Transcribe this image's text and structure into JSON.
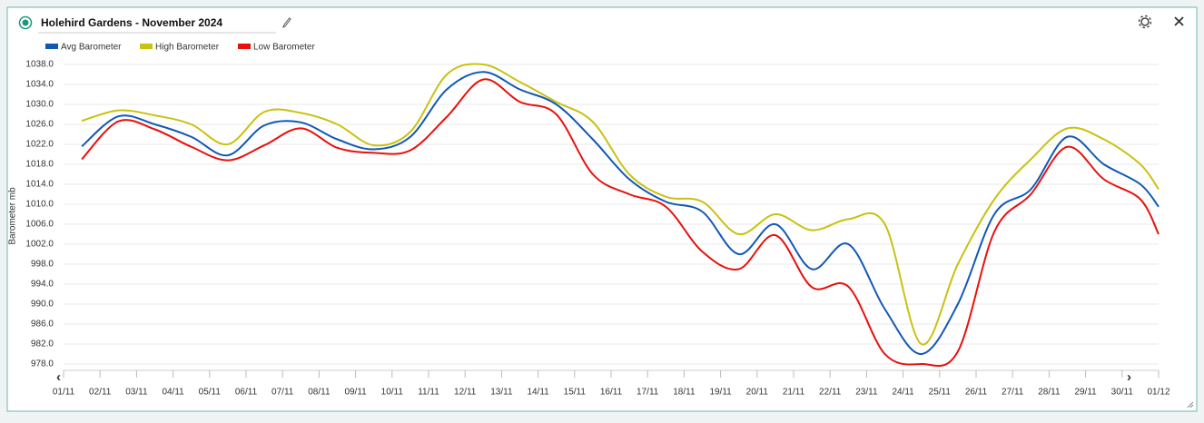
{
  "header": {
    "title": "Holehird Gardens - November 2024"
  },
  "chart_data": {
    "type": "line",
    "y_label": "Barometer mb",
    "x": [
      0.5,
      1.5,
      2.5,
      3.5,
      4.5,
      5.5,
      6.5,
      7.5,
      8.5,
      9.5,
      10.5,
      11.5,
      12.5,
      13.5,
      14.5,
      15.5,
      16.5,
      17.5,
      18.5,
      19.5,
      20.5,
      21.5,
      22.5,
      23.5,
      24.5,
      25.5,
      26.5,
      27.5,
      28.5,
      29.5,
      30
    ],
    "series": [
      {
        "name": "Avg Barometer",
        "color": "#1158b5",
        "values": [
          1021.6,
          1027.6,
          1026.0,
          1023.5,
          1019.8,
          1025.8,
          1026.4,
          1023.0,
          1021.0,
          1023.5,
          1033.0,
          1036.5,
          1033.0,
          1030.0,
          1023.0,
          1015.0,
          1010.5,
          1008.5,
          1000.0,
          1006.0,
          997.0,
          1002.0,
          989.0,
          980.0,
          990.0,
          1008.0,
          1013.0,
          1023.5,
          1018.0,
          1014.0,
          1009.5
        ]
      },
      {
        "name": "High Barometer",
        "color": "#c8c210",
        "values": [
          1026.7,
          1028.8,
          1027.8,
          1026.0,
          1022.0,
          1028.5,
          1028.3,
          1026.0,
          1021.8,
          1024.5,
          1036.0,
          1038.0,
          1034.5,
          1030.5,
          1026.5,
          1016.0,
          1011.5,
          1010.5,
          1004.0,
          1008.0,
          1004.8,
          1007.0,
          1006.0,
          982.0,
          998.0,
          1011.0,
          1019.0,
          1025.2,
          1023.0,
          1018.0,
          1013.0
        ]
      },
      {
        "name": "Low Barometer",
        "color": "#e8100c",
        "values": [
          1019.0,
          1026.6,
          1025.0,
          1021.5,
          1018.8,
          1021.8,
          1025.2,
          1021.3,
          1020.3,
          1020.8,
          1027.5,
          1035.0,
          1030.5,
          1028.0,
          1016.0,
          1012.0,
          1009.5,
          1000.5,
          997.0,
          1003.8,
          993.4,
          993.5,
          980.0,
          978.0,
          980.5,
          1004.5,
          1012.0,
          1021.5,
          1015.0,
          1011.0,
          1004.0
        ]
      }
    ],
    "xlim": [
      0,
      30
    ],
    "xticks": [
      {
        "value": 0,
        "label": "01/11"
      },
      {
        "value": 1,
        "label": "02/11"
      },
      {
        "value": 2,
        "label": "03/11"
      },
      {
        "value": 3,
        "label": "04/11"
      },
      {
        "value": 4,
        "label": "05/11"
      },
      {
        "value": 5,
        "label": "06/11"
      },
      {
        "value": 6,
        "label": "07/11"
      },
      {
        "value": 7,
        "label": "08/11"
      },
      {
        "value": 8,
        "label": "09/11"
      },
      {
        "value": 9,
        "label": "10/11"
      },
      {
        "value": 10,
        "label": "11/11"
      },
      {
        "value": 11,
        "label": "12/11"
      },
      {
        "value": 12,
        "label": "13/11"
      },
      {
        "value": 13,
        "label": "14/11"
      },
      {
        "value": 14,
        "label": "15/11"
      },
      {
        "value": 15,
        "label": "16/11"
      },
      {
        "value": 16,
        "label": "17/11"
      },
      {
        "value": 17,
        "label": "18/11"
      },
      {
        "value": 18,
        "label": "19/11"
      },
      {
        "value": 19,
        "label": "20/11"
      },
      {
        "value": 20,
        "label": "21/11"
      },
      {
        "value": 21,
        "label": "22/11"
      },
      {
        "value": 22,
        "label": "23/11"
      },
      {
        "value": 23,
        "label": "24/11"
      },
      {
        "value": 24,
        "label": "25/11"
      },
      {
        "value": 25,
        "label": "26/11"
      },
      {
        "value": 26,
        "label": "27/11"
      },
      {
        "value": 27,
        "label": "28/11"
      },
      {
        "value": 28,
        "label": "29/11"
      },
      {
        "value": 29,
        "label": "30/11"
      },
      {
        "value": 30,
        "label": "01/12"
      }
    ],
    "ylim": [
      976,
      1040
    ],
    "yticks": [
      {
        "value": 978,
        "label": "978.0"
      },
      {
        "value": 982,
        "label": "982.0"
      },
      {
        "value": 986,
        "label": "986.0"
      },
      {
        "value": 990,
        "label": "990.0"
      },
      {
        "value": 994,
        "label": "994.0"
      },
      {
        "value": 998,
        "label": "998.0"
      },
      {
        "value": 1002,
        "label": "1002.0"
      },
      {
        "value": 1006,
        "label": "1006.0"
      },
      {
        "value": 1010,
        "label": "1010.0"
      },
      {
        "value": 1014,
        "label": "1014.0"
      },
      {
        "value": 1018,
        "label": "1018.0"
      },
      {
        "value": 1022,
        "label": "1022.0"
      },
      {
        "value": 1026,
        "label": "1026.0"
      },
      {
        "value": 1030,
        "label": "1030.0"
      },
      {
        "value": 1034,
        "label": "1034.0"
      },
      {
        "value": 1038,
        "label": "1038.0"
      }
    ],
    "grid": true
  }
}
